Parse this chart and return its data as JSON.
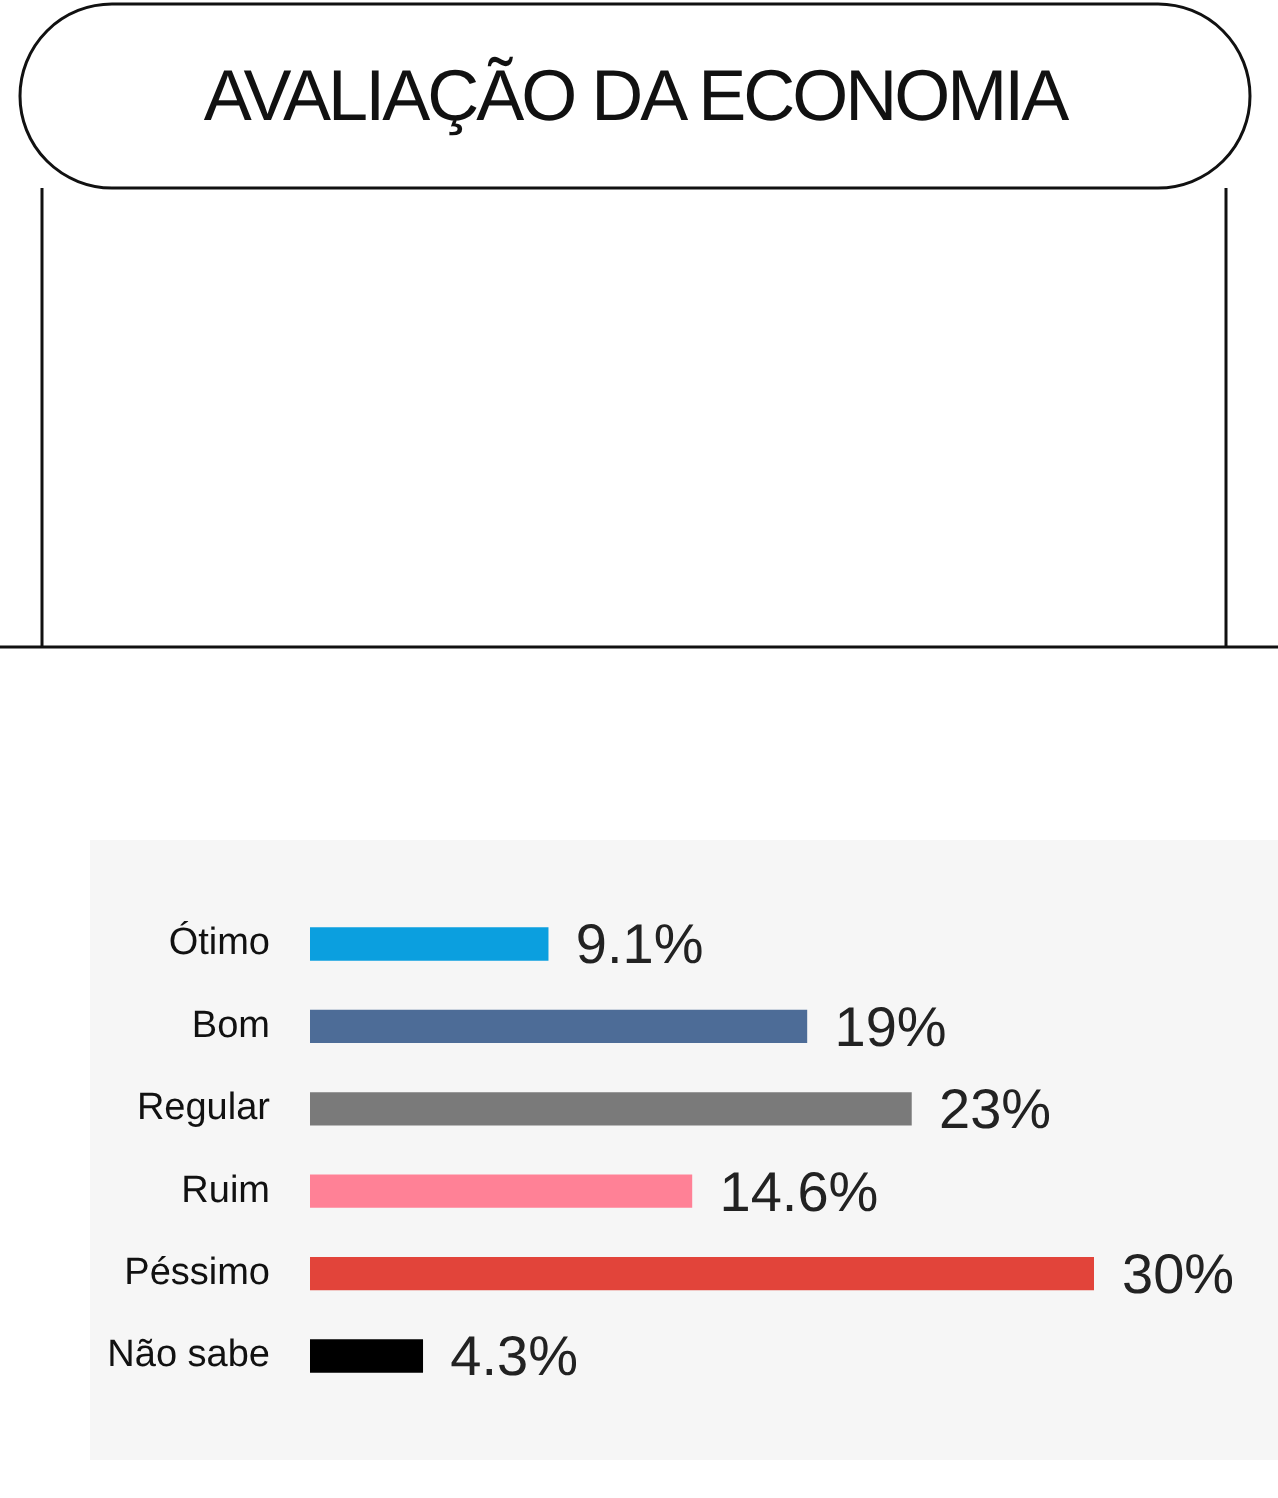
{
  "chart_data": {
    "type": "bar",
    "orientation": "horizontal",
    "title": "AVALIAÇÃO DA ECONOMIA",
    "categories": [
      "Ótimo",
      "Bom",
      "Regular",
      "Ruim",
      "Péssimo",
      "Não sabe"
    ],
    "values": [
      9.1,
      19,
      23,
      14.6,
      30,
      4.3
    ],
    "value_labels": [
      "9.1%",
      "19%",
      "23%",
      "14.6%",
      "30%",
      "4.3%"
    ],
    "colors": [
      "#0b9fdf",
      "#4d6c97",
      "#7a7a7a",
      "#ff8196",
      "#e2443a",
      "#000000"
    ],
    "grid": false,
    "legend": false
  }
}
